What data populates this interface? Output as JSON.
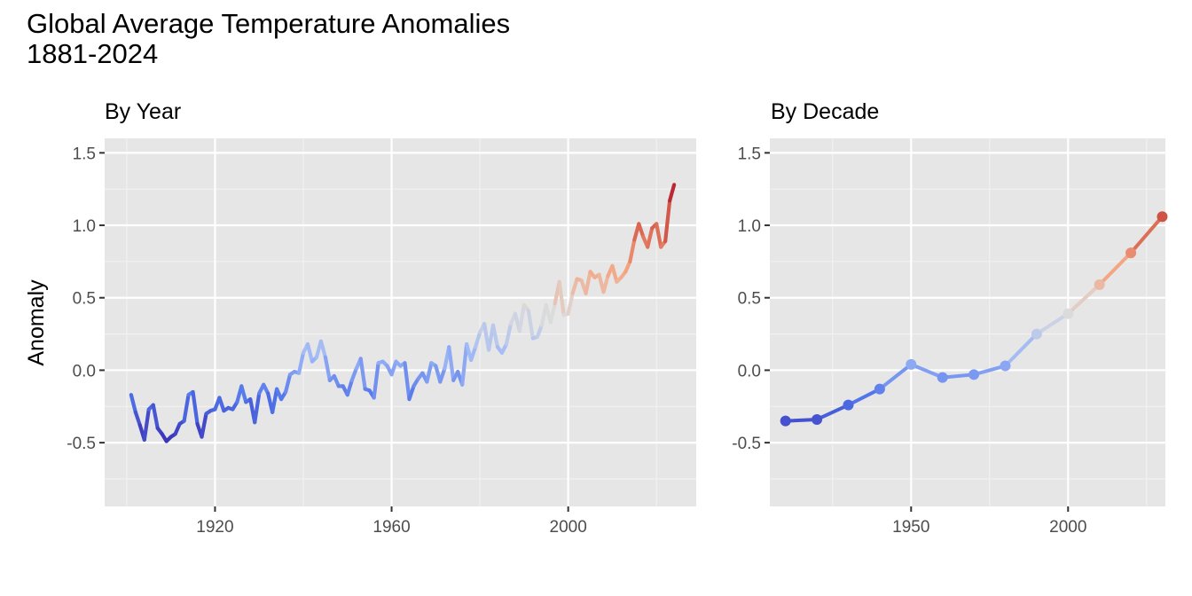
{
  "title_line1": "Global Average Temperature Anomalies",
  "title_line2": "1881-2024",
  "chart_data": [
    {
      "type": "line",
      "subtitle": "By Year",
      "xlabel": "",
      "ylabel": "Anomaly",
      "xlim": [
        1895,
        2029
      ],
      "ylim": [
        -0.94,
        1.6
      ],
      "xticks": [
        1920,
        1960,
        2000
      ],
      "yticks": [
        -0.5,
        0.0,
        0.5,
        1.0,
        1.5
      ],
      "ytick_labels": [
        "-0.5",
        "0.0",
        "0.5",
        "1.0",
        "1.5"
      ],
      "grid": true,
      "color_scale": [
        "#3b2fb5",
        "#4f72e8",
        "#9db7f7",
        "#dcdcdc",
        "#f4a582",
        "#d6604d",
        "#b2182b"
      ],
      "x": [
        1901,
        1902,
        1903,
        1904,
        1905,
        1906,
        1907,
        1908,
        1909,
        1910,
        1911,
        1912,
        1913,
        1914,
        1915,
        1916,
        1917,
        1918,
        1919,
        1920,
        1921,
        1922,
        1923,
        1924,
        1925,
        1926,
        1927,
        1928,
        1929,
        1930,
        1931,
        1932,
        1933,
        1934,
        1935,
        1936,
        1937,
        1938,
        1939,
        1940,
        1941,
        1942,
        1943,
        1944,
        1945,
        1946,
        1947,
        1948,
        1949,
        1950,
        1951,
        1952,
        1953,
        1954,
        1955,
        1956,
        1957,
        1958,
        1959,
        1960,
        1961,
        1962,
        1963,
        1964,
        1965,
        1966,
        1967,
        1968,
        1969,
        1970,
        1971,
        1972,
        1973,
        1974,
        1975,
        1976,
        1977,
        1978,
        1979,
        1980,
        1981,
        1982,
        1983,
        1984,
        1985,
        1986,
        1987,
        1988,
        1989,
        1990,
        1991,
        1992,
        1993,
        1994,
        1995,
        1996,
        1997,
        1998,
        1999,
        2000,
        2001,
        2002,
        2003,
        2004,
        2005,
        2006,
        2007,
        2008,
        2009,
        2010,
        2011,
        2012,
        2013,
        2014,
        2015,
        2016,
        2017,
        2018,
        2019,
        2020,
        2021,
        2022,
        2023,
        2024
      ],
      "y": [
        -0.17,
        -0.29,
        -0.38,
        -0.48,
        -0.27,
        -0.24,
        -0.4,
        -0.44,
        -0.49,
        -0.46,
        -0.44,
        -0.37,
        -0.35,
        -0.17,
        -0.15,
        -0.37,
        -0.46,
        -0.3,
        -0.28,
        -0.27,
        -0.19,
        -0.28,
        -0.26,
        -0.27,
        -0.22,
        -0.11,
        -0.22,
        -0.2,
        -0.36,
        -0.16,
        -0.1,
        -0.16,
        -0.29,
        -0.13,
        -0.2,
        -0.15,
        -0.03,
        -0.01,
        -0.02,
        0.12,
        0.18,
        0.06,
        0.09,
        0.2,
        0.09,
        -0.07,
        -0.04,
        -0.11,
        -0.11,
        -0.17,
        -0.07,
        0.01,
        0.08,
        -0.13,
        -0.14,
        -0.19,
        0.05,
        0.06,
        0.03,
        -0.03,
        0.06,
        0.03,
        0.05,
        -0.2,
        -0.11,
        -0.06,
        -0.02,
        -0.08,
        0.05,
        0.03,
        -0.08,
        0.01,
        0.16,
        -0.07,
        -0.01,
        -0.1,
        0.18,
        0.07,
        0.16,
        0.26,
        0.32,
        0.14,
        0.31,
        0.16,
        0.12,
        0.18,
        0.32,
        0.39,
        0.27,
        0.45,
        0.41,
        0.22,
        0.23,
        0.31,
        0.45,
        0.33,
        0.46,
        0.61,
        0.38,
        0.39,
        0.53,
        0.63,
        0.62,
        0.53,
        0.68,
        0.64,
        0.66,
        0.54,
        0.65,
        0.72,
        0.61,
        0.64,
        0.68,
        0.75,
        0.9,
        1.01,
        0.92,
        0.85,
        0.98,
        1.01,
        0.85,
        0.89,
        1.17,
        1.28
      ]
    },
    {
      "type": "line",
      "subtitle": "By Decade",
      "xlabel": "",
      "ylabel": "",
      "xlim": [
        1905,
        2031
      ],
      "ylim": [
        -0.94,
        1.6
      ],
      "xticks": [
        1950,
        2000
      ],
      "yticks": [
        -0.5,
        0.0,
        0.5,
        1.0,
        1.5
      ],
      "ytick_labels": [
        "-0.5",
        "0.0",
        "0.5",
        "1.0",
        "1.5"
      ],
      "grid": true,
      "x": [
        1910,
        1920,
        1930,
        1940,
        1950,
        1960,
        1970,
        1980,
        1990,
        2000,
        2010,
        2020,
        2030
      ],
      "y": [
        -0.35,
        -0.34,
        -0.24,
        -0.13,
        0.04,
        -0.05,
        -0.03,
        0.03,
        0.25,
        0.39,
        0.59,
        0.81,
        1.06
      ]
    }
  ]
}
